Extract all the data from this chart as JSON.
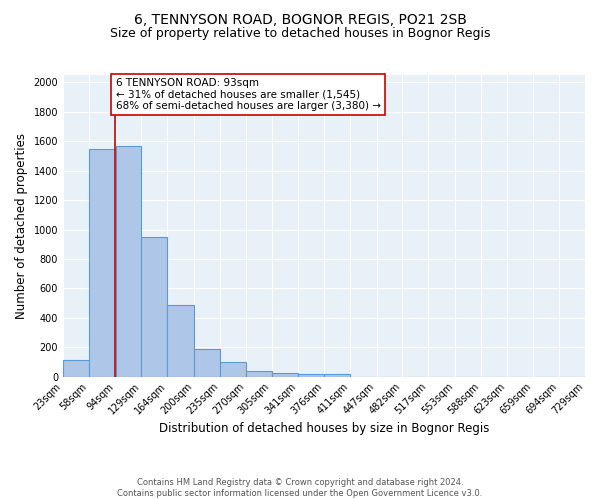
{
  "title": "6, TENNYSON ROAD, BOGNOR REGIS, PO21 2SB",
  "subtitle": "Size of property relative to detached houses in Bognor Regis",
  "xlabel": "Distribution of detached houses by size in Bognor Regis",
  "ylabel": "Number of detached properties",
  "bin_edges": [
    23,
    58,
    94,
    129,
    164,
    200,
    235,
    270,
    305,
    341,
    376,
    411,
    447,
    482,
    517,
    553,
    588,
    623,
    659,
    694,
    729
  ],
  "bar_heights": [
    110,
    1545,
    1570,
    950,
    490,
    185,
    100,
    40,
    25,
    15,
    15,
    0,
    0,
    0,
    0,
    0,
    0,
    0,
    0,
    0
  ],
  "bar_color": "#aec6e8",
  "bar_edge_color": "#5b9bd5",
  "property_line_x": 93,
  "property_line_color": "#cc0000",
  "annotation_text": "6 TENNYSON ROAD: 93sqm\n← 31% of detached houses are smaller (1,545)\n68% of semi-detached houses are larger (3,380) →",
  "annotation_box_color": "#ffffff",
  "annotation_box_edge_color": "#cc0000",
  "ylim": [
    0,
    2050
  ],
  "yticks": [
    0,
    200,
    400,
    600,
    800,
    1000,
    1200,
    1400,
    1600,
    1800,
    2000
  ],
  "background_color": "#e8f0f8",
  "grid_color": "#ffffff",
  "footnote": "Contains HM Land Registry data © Crown copyright and database right 2024.\nContains public sector information licensed under the Open Government Licence v3.0.",
  "title_fontsize": 10,
  "subtitle_fontsize": 9,
  "xlabel_fontsize": 8.5,
  "ylabel_fontsize": 8.5,
  "tick_fontsize": 7,
  "annotation_fontsize": 7.5,
  "footnote_fontsize": 6
}
